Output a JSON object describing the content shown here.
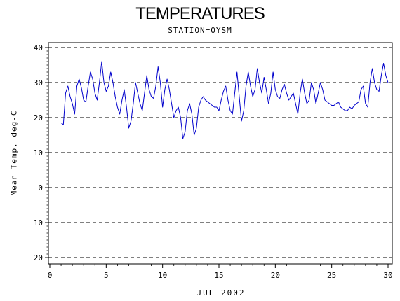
{
  "chart_data": {
    "type": "line",
    "title": "TEMPERATURES",
    "subtitle": "STATION=OYSM",
    "xlabel": "JUL 2002",
    "ylabel": "Mean Temp. deg-C",
    "xlim": [
      0,
      30
    ],
    "ylim": [
      -20,
      40
    ],
    "x_ticks": [
      0,
      5,
      10,
      15,
      20,
      25,
      30
    ],
    "y_ticks": [
      -20,
      -10,
      0,
      10,
      20,
      30,
      40
    ],
    "grid": "dashed horizontal at major y ticks",
    "legend": "none",
    "line_color": "#0000cc",
    "series": [
      {
        "x": [
          1.0,
          1.2,
          1.4,
          1.6,
          1.8,
          2.0,
          2.2,
          2.4,
          2.6,
          2.8,
          3.0,
          3.2,
          3.4,
          3.6,
          3.8,
          4.0,
          4.2,
          4.4,
          4.6,
          4.8,
          5.0,
          5.2,
          5.4,
          5.6,
          5.8,
          6.0,
          6.2,
          6.4,
          6.6,
          6.8,
          7.0,
          7.2,
          7.4,
          7.6,
          7.8,
          8.0,
          8.2,
          8.4,
          8.6,
          8.8,
          9.0,
          9.2,
          9.4,
          9.6,
          9.8,
          10.0,
          10.2,
          10.4,
          10.6,
          10.8,
          11.0,
          11.2,
          11.4,
          11.6,
          11.8,
          12.0,
          12.2,
          12.4,
          12.6,
          12.8,
          13.0,
          13.2,
          13.4,
          13.6,
          13.8,
          14.0,
          14.2,
          14.4,
          14.6,
          14.8,
          15.0,
          15.2,
          15.4,
          15.6,
          15.8,
          16.0,
          16.2,
          16.4,
          16.6,
          16.8,
          17.0,
          17.2,
          17.4,
          17.6,
          17.8,
          18.0,
          18.2,
          18.4,
          18.6,
          18.8,
          19.0,
          19.2,
          19.4,
          19.6,
          19.8,
          20.0,
          20.2,
          20.4,
          20.6,
          20.8,
          21.0,
          21.2,
          21.4,
          21.6,
          21.8,
          22.0,
          22.2,
          22.4,
          22.6,
          22.8,
          23.0,
          23.2,
          23.4,
          23.6,
          23.8,
          24.0,
          24.2,
          24.4,
          24.6,
          24.8,
          25.0,
          25.2,
          25.4,
          25.6,
          25.8,
          26.0,
          26.2,
          26.4,
          26.6,
          26.8,
          27.0,
          27.2,
          27.4,
          27.6,
          27.8,
          28.0,
          28.2,
          28.4,
          28.6,
          28.8,
          29.0,
          29.2,
          29.4,
          29.6,
          29.8,
          30.0
        ],
        "y": [
          18.5,
          18.0,
          27.0,
          29.0,
          26.0,
          24.0,
          21.0,
          29.0,
          31.0,
          28.5,
          25.0,
          24.5,
          29.0,
          33.0,
          31.0,
          27.0,
          25.0,
          30.0,
          36.0,
          30.0,
          27.5,
          29.0,
          33.0,
          30.0,
          26.0,
          23.0,
          21.0,
          25.0,
          28.0,
          23.0,
          17.0,
          19.0,
          24.0,
          30.0,
          27.0,
          24.0,
          22.0,
          27.0,
          32.0,
          28.0,
          26.0,
          25.5,
          29.0,
          34.5,
          30.0,
          23.0,
          28.0,
          31.0,
          28.0,
          24.0,
          20.0,
          22.0,
          23.0,
          20.0,
          14.0,
          16.0,
          22.0,
          24.0,
          21.0,
          15.0,
          17.0,
          23.0,
          25.0,
          26.0,
          25.0,
          24.5,
          24.0,
          23.5,
          23.0,
          23.0,
          22.0,
          25.0,
          27.5,
          29.0,
          25.0,
          22.0,
          21.0,
          27.0,
          33.0,
          26.0,
          19.0,
          22.0,
          29.0,
          33.0,
          29.0,
          26.0,
          28.0,
          34.0,
          30.0,
          27.0,
          31.5,
          28.0,
          24.0,
          27.0,
          33.0,
          28.0,
          26.0,
          25.5,
          28.0,
          29.5,
          27.0,
          25.0,
          26.0,
          27.0,
          24.0,
          21.0,
          27.0,
          31.0,
          27.0,
          24.0,
          25.0,
          30.0,
          28.0,
          24.0,
          27.0,
          30.0,
          28.0,
          25.0,
          24.5,
          24.0,
          23.5,
          23.5,
          24.0,
          24.5,
          23.0,
          22.5,
          22.0,
          22.0,
          23.0,
          22.5,
          23.5,
          24.0,
          24.5,
          28.0,
          29.0,
          24.0,
          23.0,
          30.0,
          34.0,
          30.0,
          28.0,
          27.5,
          32.0,
          35.5,
          32.0,
          30.0
        ]
      }
    ]
  }
}
